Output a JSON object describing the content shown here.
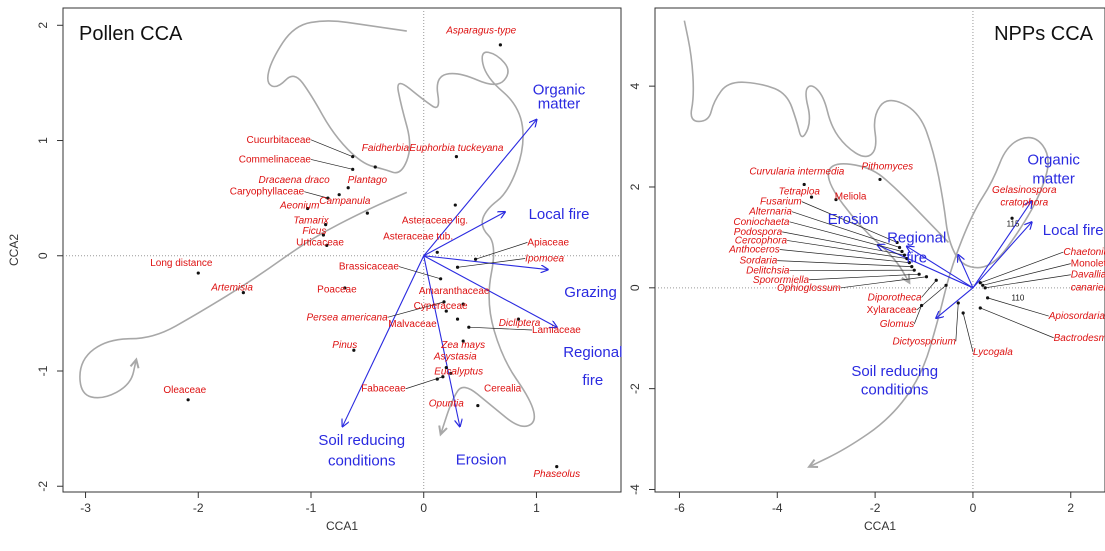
{
  "chart_data": [
    {
      "type": "scatter",
      "title": "Pollen CCA",
      "xlabel": "CCA1",
      "ylabel": "CCA2",
      "xlim": [
        -3.2,
        1.75
      ],
      "ylim": [
        -2.05,
        2.15
      ],
      "xticks": [
        -3,
        -2,
        -1,
        0,
        1
      ],
      "yticks": [
        -2,
        -1,
        0,
        1,
        2
      ],
      "xtick_labels": [
        "-3",
        "-2",
        "-1",
        "0",
        "1"
      ],
      "ytick_labels": [
        "-2",
        "-1",
        "0",
        "1",
        "2"
      ],
      "reference_lines": {
        "x": 0,
        "y": 0
      },
      "points": [
        {
          "label": "Asparagus-type",
          "italic": true,
          "x": 0.68,
          "y": 1.83,
          "lx": 0.51,
          "ly": 1.93
        },
        {
          "label": "Faidherbia",
          "italic": true,
          "x": -0.43,
          "y": 0.77,
          "lx": -0.34,
          "ly": 0.91
        },
        {
          "label": "Euphorbia tuckeyana",
          "italic": true,
          "x": 0.29,
          "y": 0.86,
          "lx": 0.29,
          "ly": 0.91
        },
        {
          "label": "Cucurbitaceae",
          "italic": false,
          "x": -0.63,
          "y": 0.86,
          "lx": -1.0,
          "ly": 0.98,
          "lead": true
        },
        {
          "label": "Commelinaceae",
          "italic": false,
          "x": -0.63,
          "y": 0.75,
          "lx": -1.0,
          "ly": 0.81,
          "lead": true
        },
        {
          "label": "Dracaena draco",
          "italic": true,
          "x": -0.75,
          "y": 0.53,
          "lx": -1.15,
          "ly": 0.63
        },
        {
          "label": "Plantago",
          "italic": true,
          "x": -0.67,
          "y": 0.59,
          "lx": -0.5,
          "ly": 0.63
        },
        {
          "label": "Caryophyllaceae",
          "italic": false,
          "x": -0.85,
          "y": 0.5,
          "lx": -1.06,
          "ly": 0.53,
          "lead": true
        },
        {
          "label": "Campanula",
          "italic": true,
          "x": -0.5,
          "y": 0.37,
          "lx": -0.7,
          "ly": 0.45
        },
        {
          "label": "Aeonium",
          "italic": true,
          "x": -1.03,
          "y": 0.41,
          "lx": -1.1,
          "ly": 0.41
        },
        {
          "label": "Tamarix",
          "italic": true,
          "x": -0.87,
          "y": 0.27,
          "lx": -1.0,
          "ly": 0.28
        },
        {
          "label": "Ficus",
          "italic": true,
          "x": -0.89,
          "y": 0.18,
          "lx": -0.97,
          "ly": 0.19
        },
        {
          "label": "Urticaceae",
          "italic": false,
          "x": -0.86,
          "y": 0.09,
          "lx": -0.92,
          "ly": 0.09
        },
        {
          "label": "Asteraceae lig.",
          "italic": false,
          "x": 0.28,
          "y": 0.44,
          "lx": 0.1,
          "ly": 0.28
        },
        {
          "label": "Asteraceae tub.",
          "italic": false,
          "x": 0.12,
          "y": 0.03,
          "lx": -0.05,
          "ly": 0.14
        },
        {
          "label": "Apiaceae",
          "italic": false,
          "x": 0.46,
          "y": -0.03,
          "lx": 0.92,
          "ly": 0.09,
          "lead": true
        },
        {
          "label": "Ipomoea",
          "italic": true,
          "x": 0.3,
          "y": -0.1,
          "lx": 0.9,
          "ly": -0.05,
          "lead": true
        },
        {
          "label": "Long distance",
          "italic": false,
          "x": -2.0,
          "y": -0.15,
          "lx": -2.15,
          "ly": -0.09
        },
        {
          "label": "Artemisia",
          "italic": true,
          "x": -1.6,
          "y": -0.32,
          "lx": -1.7,
          "ly": -0.3
        },
        {
          "label": "Brassicaceae",
          "italic": false,
          "x": 0.15,
          "y": -0.2,
          "lx": -0.22,
          "ly": -0.12,
          "lead": true
        },
        {
          "label": "Poaceae",
          "italic": false,
          "x": -0.7,
          "y": -0.28,
          "lx": -0.77,
          "ly": -0.32
        },
        {
          "label": "Persea americana",
          "italic": true,
          "x": 0.18,
          "y": -0.4,
          "lx": -0.32,
          "ly": -0.56,
          "lead": true
        },
        {
          "label": "Amaranthaceae",
          "italic": false,
          "x": 0.2,
          "y": -0.48,
          "lx": 0.27,
          "ly": -0.33
        },
        {
          "label": "Cyperaceae",
          "italic": false,
          "x": 0.35,
          "y": -0.42,
          "lx": 0.15,
          "ly": -0.46
        },
        {
          "label": "Dicliptera",
          "italic": true,
          "x": 0.84,
          "y": -0.55,
          "lx": 0.85,
          "ly": -0.61
        },
        {
          "label": "Lamiaceae",
          "italic": false,
          "x": 0.4,
          "y": -0.62,
          "lx": 0.96,
          "ly": -0.67,
          "lead": true
        },
        {
          "label": "Malvaceae",
          "italic": false,
          "x": 0.3,
          "y": -0.55,
          "lx": -0.1,
          "ly": -0.62
        },
        {
          "label": "Zea mays",
          "italic": true,
          "x": 0.35,
          "y": -0.74,
          "lx": 0.35,
          "ly": -0.8
        },
        {
          "label": "Pinus",
          "italic": true,
          "x": -0.62,
          "y": -0.82,
          "lx": -0.7,
          "ly": -0.8
        },
        {
          "label": "Asystasia",
          "italic": true,
          "x": 0.2,
          "y": -0.97,
          "lx": 0.28,
          "ly": -0.9
        },
        {
          "label": "Eucalyptus",
          "italic": true,
          "x": 0.24,
          "y": -1.02,
          "lx": 0.31,
          "ly": -1.03
        },
        {
          "label": "Fabaceae",
          "italic": false,
          "x": 0.17,
          "y": -1.05,
          "lx": -0.16,
          "ly": -1.18,
          "lead": true
        },
        {
          "label": "Opuntia",
          "italic": true,
          "x": 0.12,
          "y": -1.07,
          "lx": 0.2,
          "ly": -1.31
        },
        {
          "label": "Cerealia",
          "italic": false,
          "x": 0.48,
          "y": -1.3,
          "lx": 0.7,
          "ly": -1.18
        },
        {
          "label": "Oleaceae",
          "italic": false,
          "x": -2.09,
          "y": -1.25,
          "lx": -2.12,
          "ly": -1.19
        },
        {
          "label": "Phaseolus",
          "italic": true,
          "x": 1.18,
          "y": -1.83,
          "lx": 1.18,
          "ly": -1.92
        }
      ],
      "arrows": [
        {
          "label": "Organic matter",
          "x": 1.0,
          "y": 1.18,
          "lx": 1.2,
          "ly": 1.4,
          "ly2": 1.28
        },
        {
          "label": "Local fire",
          "x": 0.72,
          "y": 0.38,
          "lx": 1.2,
          "ly": 0.32
        },
        {
          "label": "Grazing",
          "x": 1.1,
          "y": -0.12,
          "lx": 1.48,
          "ly": -0.36
        },
        {
          "label": "Regional fire",
          "x": 1.18,
          "y": -0.62,
          "lx": 1.5,
          "ly": -0.88,
          "ly2": -1.12
        },
        {
          "label": "Soil reducing conditions",
          "x": -0.72,
          "y": -1.48,
          "lx": -0.55,
          "ly": -1.64,
          "ly2": -1.82
        },
        {
          "label": "Erosion",
          "x": 0.32,
          "y": -1.48,
          "lx": 0.51,
          "ly": -1.81
        }
      ],
      "trajectory": [
        [
          -0.15,
          1.95
        ],
        [
          -0.5,
          2.0
        ],
        [
          -0.85,
          2.05
        ],
        [
          -1.15,
          2.0
        ],
        [
          -1.35,
          1.7
        ],
        [
          -1.4,
          1.5
        ],
        [
          -1.3,
          1.45
        ],
        [
          -1.15,
          1.6
        ],
        [
          -1.0,
          1.4
        ],
        [
          -0.8,
          1.05
        ],
        [
          -0.55,
          0.8
        ],
        [
          -0.35,
          0.75
        ],
        [
          -0.2,
          0.7
        ],
        [
          -0.1,
          0.95
        ],
        [
          -0.2,
          1.3
        ],
        [
          -0.25,
          1.55
        ],
        [
          0.0,
          1.35
        ],
        [
          0.15,
          1.25
        ],
        [
          0.1,
          1.55
        ],
        [
          0.3,
          1.6
        ],
        [
          0.65,
          1.45
        ],
        [
          0.78,
          1.6
        ],
        [
          0.65,
          1.75
        ],
        [
          0.5,
          1.78
        ],
        [
          0.55,
          1.55
        ],
        [
          0.85,
          1.3
        ],
        [
          0.9,
          0.95
        ],
        [
          0.75,
          0.55
        ],
        [
          0.55,
          0.4
        ],
        [
          0.5,
          0.25
        ],
        [
          0.65,
          0.1
        ],
        [
          0.55,
          -0.4
        ],
        [
          0.7,
          -0.9
        ],
        [
          0.95,
          -1.25
        ],
        [
          1.0,
          -1.45
        ],
        [
          0.85,
          -1.5
        ],
        [
          0.6,
          -1.3
        ],
        [
          0.35,
          -1.1
        ],
        [
          0.25,
          -1.25
        ],
        [
          0.15,
          -1.55
        ]
      ],
      "trajectory2": [
        [
          -0.15,
          0.55
        ],
        [
          -0.5,
          0.4
        ],
        [
          -1.0,
          0.15
        ],
        [
          -1.5,
          -0.2
        ],
        [
          -2.0,
          -0.5
        ],
        [
          -2.4,
          -0.72
        ],
        [
          -2.8,
          -0.72
        ],
        [
          -3.05,
          -0.9
        ],
        [
          -3.05,
          -1.2
        ],
        [
          -2.85,
          -1.25
        ],
        [
          -2.6,
          -1.12
        ],
        [
          -2.55,
          -0.9
        ]
      ]
    },
    {
      "type": "scatter",
      "title": "NPPs CCA",
      "xlabel": "CCA1",
      "ylabel": "",
      "xlim": [
        -6.5,
        2.7
      ],
      "ylim": [
        -4.05,
        5.55
      ],
      "xticks": [
        -6,
        -4,
        -2,
        0,
        2
      ],
      "yticks": [
        -4,
        -2,
        0,
        2,
        4
      ],
      "xtick_labels": [
        "-6",
        "-4",
        "-2",
        "0",
        "2"
      ],
      "ytick_labels": [
        "-4",
        "-2",
        "0",
        "2",
        "4"
      ],
      "reference_lines": {
        "x": 0,
        "y": 0
      },
      "points": [
        {
          "label": "Curvularia intermedia",
          "italic": true,
          "x": -3.45,
          "y": 2.05,
          "lx": -3.6,
          "ly": 2.25
        },
        {
          "label": "Pithomyces",
          "italic": true,
          "x": -1.9,
          "y": 2.15,
          "lx": -1.75,
          "ly": 2.35
        },
        {
          "label": "Tetraploa",
          "italic": true,
          "x": -3.3,
          "y": 1.8,
          "lx": -3.55,
          "ly": 1.85
        },
        {
          "label": "Meliola",
          "italic": false,
          "x": -2.8,
          "y": 1.75,
          "lx": -2.5,
          "ly": 1.75
        },
        {
          "label": "Fusarium",
          "italic": true,
          "x": -1.55,
          "y": 0.9,
          "lx": -3.5,
          "ly": 1.65,
          "lead": true
        },
        {
          "label": "Alternaria",
          "italic": true,
          "x": -1.5,
          "y": 0.8,
          "lx": -3.7,
          "ly": 1.45,
          "lead": true
        },
        {
          "label": "Coniochaeta",
          "italic": true,
          "x": -1.45,
          "y": 0.72,
          "lx": -3.75,
          "ly": 1.25,
          "lead": true
        },
        {
          "label": "Podospora",
          "italic": true,
          "x": -1.4,
          "y": 0.65,
          "lx": -3.9,
          "ly": 1.05,
          "lead": true
        },
        {
          "label": "Cercophora",
          "italic": true,
          "x": -1.35,
          "y": 0.58,
          "lx": -3.8,
          "ly": 0.88,
          "lead": true
        },
        {
          "label": "Anthoceros",
          "italic": true,
          "x": -1.3,
          "y": 0.5,
          "lx": -3.95,
          "ly": 0.7,
          "lead": true
        },
        {
          "label": "Sordaria",
          "italic": true,
          "x": -1.25,
          "y": 0.42,
          "lx": -4.0,
          "ly": 0.48,
          "lead": true
        },
        {
          "label": "Delitchsia",
          "italic": true,
          "x": -1.2,
          "y": 0.35,
          "lx": -3.75,
          "ly": 0.28,
          "lead": true
        },
        {
          "label": "Sporormiella",
          "italic": true,
          "x": -1.1,
          "y": 0.27,
          "lx": -3.35,
          "ly": 0.1,
          "lead": true
        },
        {
          "label": "Ophioglossum",
          "italic": true,
          "x": -0.95,
          "y": 0.22,
          "lx": -2.7,
          "ly": -0.06,
          "lead": true
        },
        {
          "label": "Diporotheca",
          "italic": true,
          "x": -0.75,
          "y": 0.15,
          "lx": -1.05,
          "ly": -0.25,
          "lead": true
        },
        {
          "label": "Xylaraceae",
          "italic": false,
          "x": -0.55,
          "y": 0.05,
          "lx": -1.15,
          "ly": -0.5,
          "lead": true
        },
        {
          "label": "Glomus",
          "italic": true,
          "x": -1.05,
          "y": -0.35,
          "lx": -1.2,
          "ly": -0.78,
          "lead": true
        },
        {
          "label": "Dictyosporium",
          "italic": true,
          "x": -0.3,
          "y": -0.3,
          "lx": -0.35,
          "ly": -1.12,
          "lead": true
        },
        {
          "label": "Lycogala",
          "italic": true,
          "x": -0.2,
          "y": -0.5,
          "lx": 0.0,
          "ly": -1.33,
          "lead": true
        },
        {
          "label": "Bactrodesmium",
          "italic": true,
          "x": 0.15,
          "y": -0.4,
          "lx": 1.65,
          "ly": -1.05,
          "lead": true
        },
        {
          "label": "Apiosordaria",
          "italic": true,
          "x": 0.3,
          "y": -0.2,
          "lx": 1.55,
          "ly": -0.62,
          "lead": true
        },
        {
          "label": "Gelasinospora cratophora",
          "italic": true,
          "x": 0.8,
          "y": 1.38,
          "lx": 1.05,
          "ly": 1.88,
          "ly2": 1.63
        },
        {
          "label": "Chaetonium",
          "italic": true,
          "x": 0.15,
          "y": 0.1,
          "lx": 1.85,
          "ly": 0.65,
          "lead": true
        },
        {
          "label": "Monolete psilate",
          "italic": false,
          "x": 0.2,
          "y": 0.05,
          "lx": 2.0,
          "ly": 0.42,
          "lead": true
        },
        {
          "label": "Davallia canariensis",
          "italic": true,
          "x": 0.25,
          "y": 0.0,
          "lx": 2.0,
          "ly": 0.2,
          "ly2": -0.05,
          "lead": true
        }
      ],
      "samples": [
        {
          "label": "115",
          "x": 0.82,
          "y": 1.22
        },
        {
          "label": "110",
          "x": 0.92,
          "y": -0.25
        }
      ],
      "arrows": [
        {
          "label": "Organic matter",
          "x": 1.2,
          "y": 1.72,
          "lx": 1.65,
          "ly": 2.45,
          "ly2": 2.07
        },
        {
          "label": "Local fire",
          "x": 1.2,
          "y": 1.3,
          "lx": 2.05,
          "ly": 1.05
        },
        {
          "label": "Erosion",
          "x": -1.95,
          "y": 0.85,
          "lx": -2.45,
          "ly": 1.27
        },
        {
          "label": "Regional fire",
          "x": -1.35,
          "y": 0.82,
          "lx": -1.15,
          "ly": 0.9,
          "ly2": 0.5
        },
        {
          "label": "Soil reducing conditions",
          "x": -0.75,
          "y": -0.6,
          "lx": -1.6,
          "ly": -1.75,
          "ly2": -2.12
        },
        {
          "label": "",
          "x": -0.3,
          "y": 0.65,
          "lx": 0,
          "ly": 0
        }
      ],
      "trajectory": [
        [
          -5.9,
          5.3
        ],
        [
          -5.75,
          4.6
        ],
        [
          -5.7,
          3.8
        ],
        [
          -5.8,
          3.3
        ],
        [
          -5.4,
          3.3
        ],
        [
          -5.3,
          3.7
        ],
        [
          -5.0,
          4.1
        ],
        [
          -4.3,
          4.05
        ],
        [
          -3.8,
          3.85
        ],
        [
          -3.6,
          3.3
        ],
        [
          -3.5,
          2.9
        ],
        [
          -3.3,
          3.3
        ],
        [
          -3.45,
          3.9
        ],
        [
          -3.3,
          4.05
        ],
        [
          -3.05,
          3.8
        ],
        [
          -2.9,
          3.2
        ],
        [
          -2.6,
          2.8
        ],
        [
          -2.2,
          2.55
        ],
        [
          -1.95,
          2.75
        ],
        [
          -2.05,
          3.4
        ],
        [
          -1.75,
          3.8
        ],
        [
          -1.1,
          3.5
        ],
        [
          -0.8,
          2.7
        ],
        [
          -0.6,
          1.7
        ],
        [
          -0.5,
          0.9
        ],
        [
          -0.2,
          0.4
        ],
        [
          0.4,
          0.4
        ],
        [
          1.0,
          1.2
        ],
        [
          1.4,
          1.9
        ],
        [
          1.6,
          2.6
        ],
        [
          1.25,
          3.05
        ],
        [
          0.7,
          2.85
        ],
        [
          0.4,
          2.1
        ],
        [
          0.0,
          1.5
        ],
        [
          -0.45,
          0.4
        ],
        [
          -0.7,
          -0.6
        ],
        [
          -1.05,
          -1.75
        ],
        [
          -1.7,
          -2.6
        ],
        [
          -2.6,
          -3.2
        ],
        [
          -3.35,
          -3.55
        ]
      ],
      "trajectory2": [
        [
          -0.5,
          0.9
        ],
        [
          -1.0,
          1.4
        ],
        [
          -1.6,
          2.0
        ],
        [
          -2.1,
          2.4
        ],
        [
          -2.9,
          2.5
        ],
        [
          -3.0,
          2.1
        ],
        [
          -2.3,
          1.2
        ],
        [
          -1.6,
          0.6
        ],
        [
          -1.3,
          0.1
        ]
      ]
    }
  ]
}
